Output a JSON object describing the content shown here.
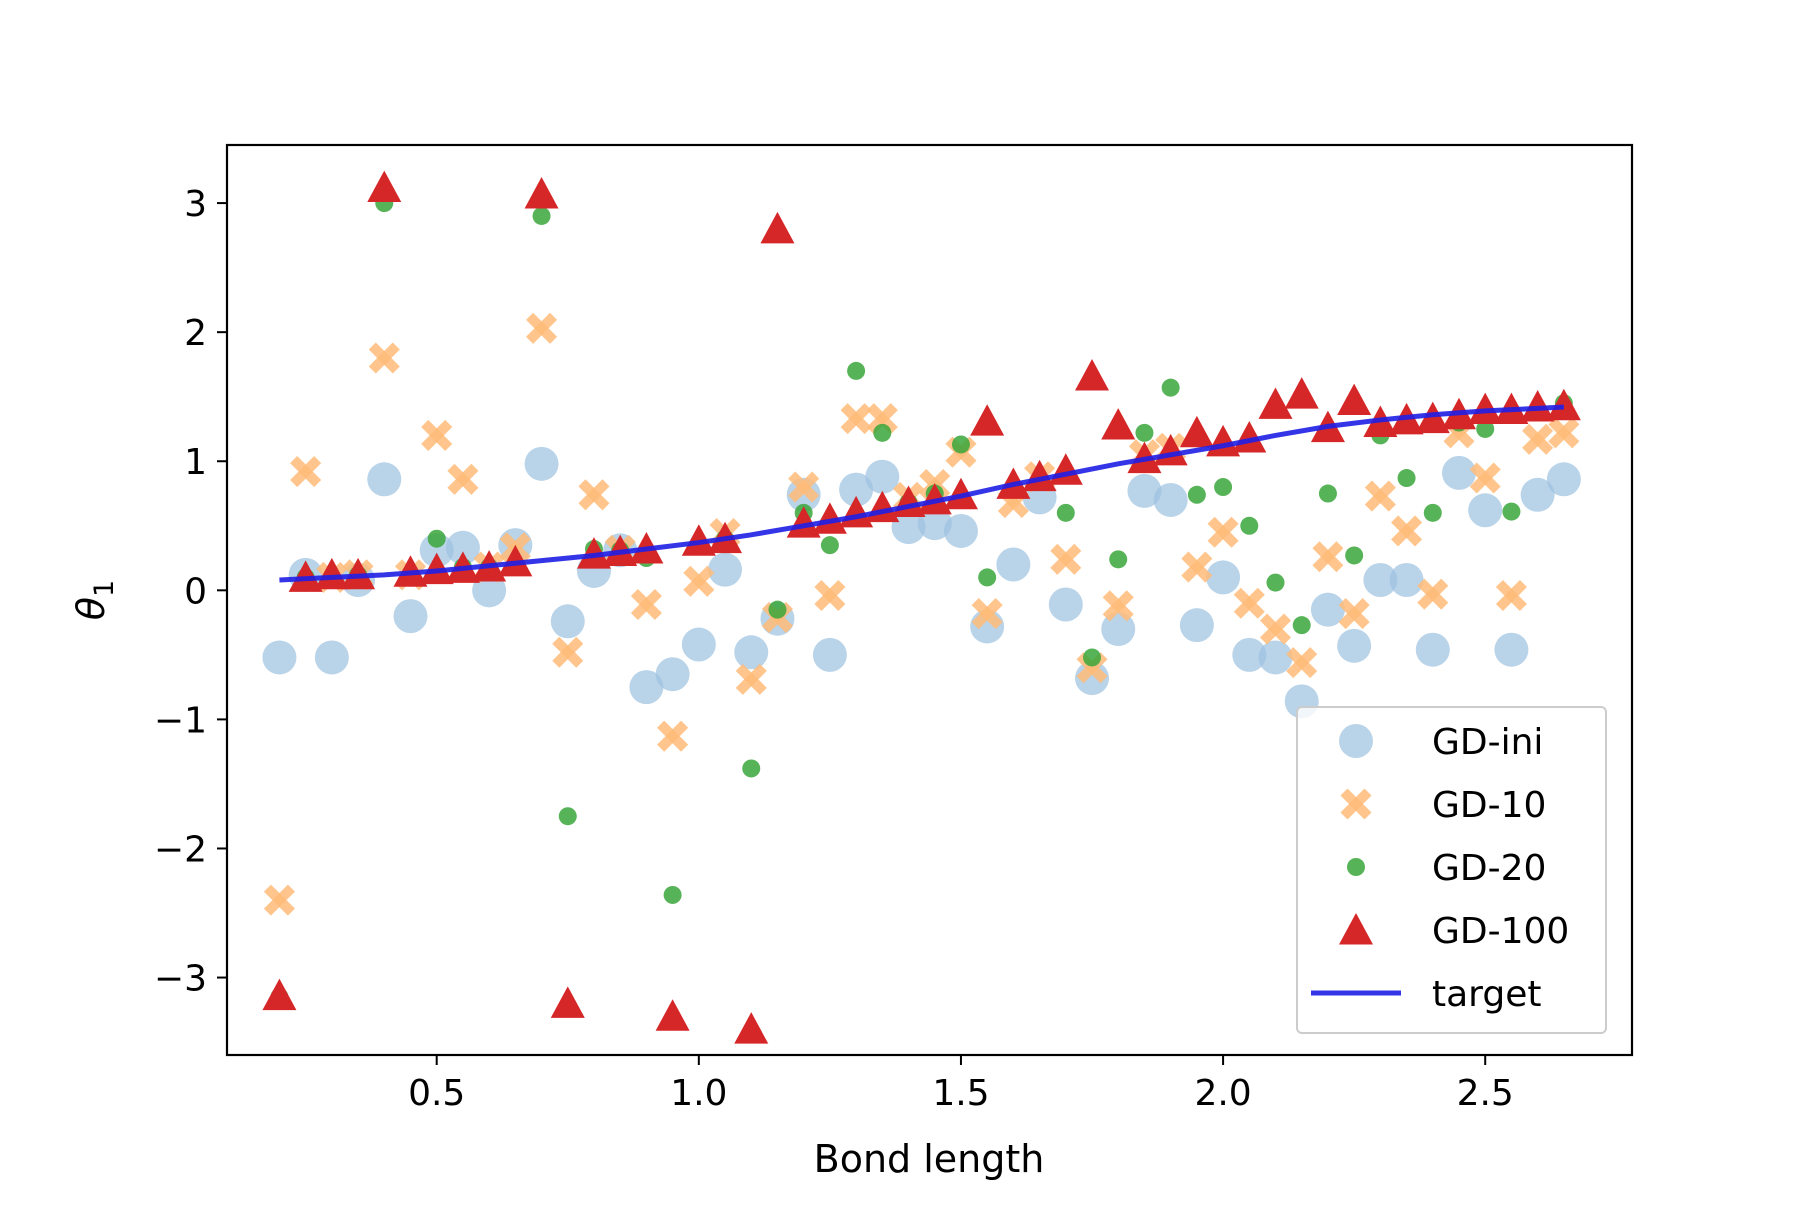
{
  "chart_data": {
    "type": "scatter",
    "title": "",
    "xlabel": "Bond length",
    "ylabel": "θ",
    "ylabel_subscript": "1",
    "xlim": [
      0.1,
      2.78
    ],
    "ylim": [
      -3.6,
      3.45
    ],
    "xticks": [
      0.5,
      1.0,
      1.5,
      2.0,
      2.5
    ],
    "xtick_labels": [
      "0.5",
      "1.0",
      "1.5",
      "2.0",
      "2.5"
    ],
    "yticks": [
      -3,
      -2,
      -1,
      0,
      1,
      2,
      3
    ],
    "ytick_labels": [
      "−3",
      "−2",
      "−1",
      "0",
      "1",
      "2",
      "3"
    ],
    "grid": false,
    "legend_position": "bottom-right",
    "series": [
      {
        "name": "GD-ini",
        "marker": "circle",
        "color": "#9ec2e0",
        "x": [
          0.2,
          0.25,
          0.3,
          0.35,
          0.4,
          0.45,
          0.5,
          0.55,
          0.6,
          0.65,
          0.7,
          0.75,
          0.8,
          0.85,
          0.9,
          0.95,
          1.0,
          1.05,
          1.1,
          1.15,
          1.2,
          1.25,
          1.3,
          1.35,
          1.4,
          1.45,
          1.5,
          1.55,
          1.6,
          1.65,
          1.7,
          1.75,
          1.8,
          1.85,
          1.9,
          1.95,
          2.0,
          2.05,
          2.1,
          2.15,
          2.2,
          2.25,
          2.3,
          2.35,
          2.4,
          2.45,
          2.5,
          2.55,
          2.6,
          2.65
        ],
        "y": [
          -0.52,
          0.12,
          -0.52,
          0.08,
          0.86,
          -0.2,
          0.31,
          0.33,
          0.0,
          0.35,
          0.98,
          -0.24,
          0.15,
          0.31,
          -0.75,
          -0.65,
          -0.42,
          0.16,
          -0.48,
          -0.22,
          0.74,
          -0.5,
          0.78,
          0.88,
          0.49,
          0.52,
          0.46,
          -0.28,
          0.2,
          0.72,
          -0.11,
          -0.68,
          -0.3,
          0.77,
          0.7,
          -0.27,
          0.1,
          -0.5,
          -0.52,
          -0.86,
          -0.15,
          -0.43,
          0.08,
          0.08,
          -0.46,
          0.91,
          0.62,
          -0.46,
          0.74,
          0.86
        ]
      },
      {
        "name": "GD-10",
        "marker": "x",
        "color": "#ffbb78",
        "x": [
          0.2,
          0.25,
          0.3,
          0.35,
          0.4,
          0.45,
          0.5,
          0.55,
          0.6,
          0.65,
          0.7,
          0.75,
          0.8,
          0.85,
          0.9,
          0.95,
          1.0,
          1.05,
          1.1,
          1.15,
          1.2,
          1.25,
          1.3,
          1.35,
          1.4,
          1.45,
          1.5,
          1.55,
          1.6,
          1.65,
          1.7,
          1.75,
          1.8,
          1.85,
          1.9,
          1.95,
          2.0,
          2.05,
          2.1,
          2.15,
          2.2,
          2.25,
          2.3,
          2.35,
          2.4,
          2.45,
          2.5,
          2.55,
          2.6,
          2.65
        ],
        "y": [
          -2.4,
          0.92,
          0.1,
          0.12,
          1.8,
          0.12,
          1.2,
          0.86,
          0.18,
          0.33,
          2.03,
          -0.48,
          0.74,
          0.31,
          -0.11,
          -1.13,
          0.07,
          0.44,
          -0.69,
          -0.21,
          0.8,
          -0.04,
          1.33,
          1.33,
          0.72,
          0.82,
          1.07,
          -0.18,
          0.68,
          0.88,
          0.24,
          -0.6,
          -0.12,
          1.05,
          1.1,
          0.18,
          0.45,
          -0.1,
          -0.3,
          -0.56,
          0.26,
          -0.18,
          0.73,
          0.46,
          -0.03,
          1.22,
          0.87,
          -0.04,
          1.17,
          1.22
        ]
      },
      {
        "name": "GD-20",
        "marker": "dot",
        "color": "#3aa63a",
        "x": [
          0.2,
          0.25,
          0.3,
          0.35,
          0.4,
          0.45,
          0.5,
          0.55,
          0.6,
          0.65,
          0.7,
          0.75,
          0.8,
          0.85,
          0.9,
          0.95,
          1.0,
          1.05,
          1.1,
          1.15,
          1.2,
          1.25,
          1.3,
          1.35,
          1.4,
          1.45,
          1.5,
          1.55,
          1.6,
          1.65,
          1.7,
          1.75,
          1.8,
          1.85,
          1.9,
          1.95,
          2.0,
          2.05,
          2.1,
          2.15,
          2.2,
          2.25,
          2.3,
          2.35,
          2.4,
          2.45,
          2.5,
          2.55,
          2.6,
          2.65
        ],
        "y": [
          -3.15,
          0.1,
          0.1,
          0.12,
          3.0,
          0.12,
          0.4,
          0.18,
          0.18,
          0.2,
          2.9,
          -1.75,
          0.32,
          0.31,
          0.25,
          -2.36,
          0.35,
          0.4,
          -1.38,
          -0.15,
          0.6,
          0.35,
          1.7,
          1.22,
          0.68,
          0.75,
          1.13,
          0.1,
          0.8,
          0.85,
          0.6,
          -0.52,
          0.24,
          1.22,
          1.57,
          0.74,
          0.8,
          0.5,
          0.06,
          -0.27,
          0.75,
          0.27,
          1.2,
          0.87,
          0.6,
          1.3,
          1.25,
          0.61,
          1.4,
          1.45
        ]
      },
      {
        "name": "GD-100",
        "marker": "triangle",
        "color": "#d62728",
        "x": [
          0.2,
          0.25,
          0.3,
          0.35,
          0.4,
          0.45,
          0.5,
          0.55,
          0.6,
          0.65,
          0.7,
          0.75,
          0.8,
          0.85,
          0.9,
          0.95,
          1.0,
          1.05,
          1.1,
          1.15,
          1.2,
          1.25,
          1.3,
          1.35,
          1.4,
          1.45,
          1.5,
          1.55,
          1.6,
          1.65,
          1.7,
          1.75,
          1.8,
          1.85,
          1.9,
          1.95,
          2.0,
          2.05,
          2.1,
          2.15,
          2.2,
          2.25,
          2.3,
          2.35,
          2.4,
          2.45,
          2.5,
          2.55,
          2.6,
          2.65
        ],
        "y": [
          -3.14,
          0.1,
          0.12,
          0.12,
          3.12,
          0.14,
          0.16,
          0.17,
          0.18,
          0.22,
          3.07,
          -3.2,
          0.28,
          0.3,
          0.32,
          -3.3,
          0.38,
          0.4,
          -3.4,
          2.8,
          0.52,
          0.55,
          0.6,
          0.64,
          0.68,
          0.7,
          0.74,
          1.31,
          0.82,
          0.88,
          0.93,
          1.66,
          1.28,
          1.02,
          1.08,
          1.22,
          1.15,
          1.18,
          1.44,
          1.52,
          1.26,
          1.47,
          1.3,
          1.32,
          1.33,
          1.36,
          1.4,
          1.4,
          1.42,
          1.43
        ]
      },
      {
        "name": "target",
        "marker": "line",
        "color": "#1f1fe6",
        "x": [
          0.2,
          0.3,
          0.4,
          0.5,
          0.6,
          0.7,
          0.8,
          0.9,
          1.0,
          1.1,
          1.2,
          1.3,
          1.4,
          1.5,
          1.6,
          1.7,
          1.8,
          1.9,
          2.0,
          2.1,
          2.2,
          2.3,
          2.4,
          2.5,
          2.6,
          2.65
        ],
        "y": [
          0.08,
          0.1,
          0.12,
          0.15,
          0.19,
          0.23,
          0.27,
          0.32,
          0.37,
          0.43,
          0.5,
          0.57,
          0.65,
          0.73,
          0.82,
          0.9,
          0.98,
          1.05,
          1.12,
          1.2,
          1.27,
          1.32,
          1.36,
          1.39,
          1.41,
          1.42
        ]
      }
    ]
  }
}
